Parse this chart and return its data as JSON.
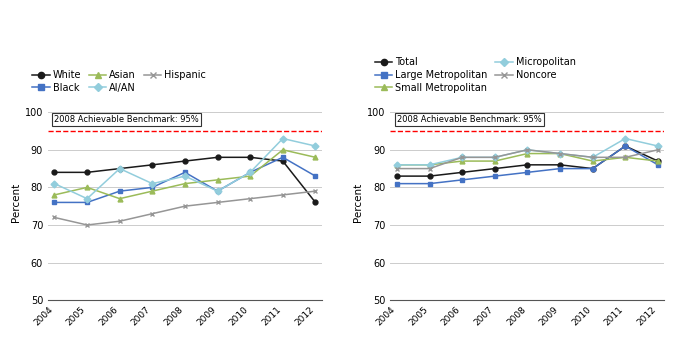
{
  "years": [
    2004,
    2005,
    2006,
    2007,
    2008,
    2009,
    2010,
    2011,
    2012
  ],
  "chart1": {
    "benchmark": 95,
    "benchmark_label": "2008 Achievable Benchmark: 95%",
    "series": {
      "White": [
        84,
        84,
        85,
        86,
        87,
        88,
        88,
        87,
        76
      ],
      "Black": [
        76,
        76,
        79,
        80,
        84,
        79,
        84,
        88,
        83
      ],
      "Asian": [
        78,
        80,
        77,
        79,
        81,
        82,
        83,
        90,
        88
      ],
      "AI/AN": [
        81,
        77,
        85,
        81,
        83,
        79,
        84,
        93,
        91
      ],
      "Hispanic": [
        72,
        70,
        71,
        73,
        75,
        76,
        77,
        78,
        79
      ]
    },
    "colors": {
      "White": "#1a1a1a",
      "Black": "#4472c4",
      "Asian": "#9bbb59",
      "AI/AN": "#92cddc",
      "Hispanic": "#969696"
    },
    "markers": {
      "White": "o",
      "Black": "s",
      "Asian": "^",
      "AI/AN": "D",
      "Hispanic": "x"
    },
    "legend_order": [
      "White",
      "Black",
      "Asian",
      "AI/AN",
      "Hispanic"
    ],
    "legend_ncol": 3,
    "ylabel": "Percent"
  },
  "chart2": {
    "benchmark": 95,
    "benchmark_label": "2008 Achievable Benchmark: 95%",
    "series": {
      "Total": [
        83,
        83,
        84,
        85,
        86,
        86,
        85,
        91,
        87
      ],
      "Large Metropolitan": [
        81,
        81,
        82,
        83,
        84,
        85,
        85,
        91,
        86
      ],
      "Small Metropolitan": [
        86,
        86,
        87,
        87,
        89,
        89,
        87,
        88,
        87
      ],
      "Micropolitan": [
        86,
        86,
        88,
        88,
        90,
        89,
        88,
        93,
        91
      ],
      "Noncore": [
        85,
        85,
        88,
        88,
        90,
        89,
        88,
        88,
        90
      ]
    },
    "colors": {
      "Total": "#1a1a1a",
      "Large Metropolitan": "#4472c4",
      "Small Metropolitan": "#9bbb59",
      "Micropolitan": "#92cddc",
      "Noncore": "#969696"
    },
    "markers": {
      "Total": "o",
      "Large Metropolitan": "s",
      "Small Metropolitan": "^",
      "Micropolitan": "D",
      "Noncore": "x"
    },
    "legend_order": [
      "Total",
      "Large Metropolitan",
      "Small Metropolitan",
      "Micropolitan",
      "Noncore"
    ],
    "legend_ncol": 2,
    "ylabel": "Percent"
  },
  "ylim": [
    50,
    102
  ],
  "yticks": [
    50,
    60,
    70,
    80,
    90,
    100
  ],
  "background_color": "#ffffff"
}
